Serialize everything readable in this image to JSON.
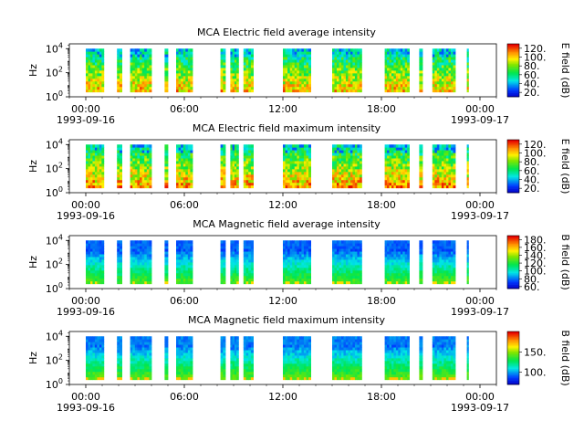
{
  "chart_data": [
    {
      "type": "heatmap",
      "title": "MCA  Electric field average intensity",
      "ylabel": "Hz",
      "ylim_log10": [
        0,
        4.4
      ],
      "y_ticks": [
        {
          "base": "10",
          "exp": "0"
        },
        {
          "base": "10",
          "exp": "2"
        },
        {
          "base": "10",
          "exp": "4"
        }
      ],
      "x_ticks": [
        {
          "time": "00:00",
          "date": "1993-09-16"
        },
        {
          "time": "06:00",
          "date": ""
        },
        {
          "time": "12:00",
          "date": ""
        },
        {
          "time": "18:00",
          "date": ""
        },
        {
          "time": "00:00",
          "date": "1993-09-17"
        }
      ],
      "x_range_hours": [
        -1,
        25
      ],
      "colorbar": {
        "label": "E field (dB)",
        "range": [
          10,
          130
        ],
        "ticks": [
          "20.",
          "40.",
          "60.",
          "80.",
          "100.",
          "120."
        ],
        "tick_values": [
          20,
          40,
          60,
          80,
          100,
          120
        ]
      },
      "kind": "electric-avg"
    },
    {
      "type": "heatmap",
      "title": "MCA  Electric field maximum intensity",
      "ylabel": "Hz",
      "ylim_log10": [
        0,
        4.4
      ],
      "y_ticks": [
        {
          "base": "10",
          "exp": "0"
        },
        {
          "base": "10",
          "exp": "2"
        },
        {
          "base": "10",
          "exp": "4"
        }
      ],
      "x_ticks": [
        {
          "time": "00:00",
          "date": "1993-09-16"
        },
        {
          "time": "06:00",
          "date": ""
        },
        {
          "time": "12:00",
          "date": ""
        },
        {
          "time": "18:00",
          "date": ""
        },
        {
          "time": "00:00",
          "date": "1993-09-17"
        }
      ],
      "x_range_hours": [
        -1,
        25
      ],
      "colorbar": {
        "label": "E field (dB)",
        "range": [
          10,
          130
        ],
        "ticks": [
          "20.",
          "40.",
          "60.",
          "80.",
          "100.",
          "120."
        ],
        "tick_values": [
          20,
          40,
          60,
          80,
          100,
          120
        ]
      },
      "kind": "electric-max"
    },
    {
      "type": "heatmap",
      "title": "MCA  Magnetic field average intensity",
      "ylabel": "Hz",
      "ylim_log10": [
        0,
        4.4
      ],
      "y_ticks": [
        {
          "base": "10",
          "exp": "0"
        },
        {
          "base": "10",
          "exp": "2"
        },
        {
          "base": "10",
          "exp": "4"
        }
      ],
      "x_ticks": [
        {
          "time": "00:00",
          "date": "1993-09-16"
        },
        {
          "time": "06:00",
          "date": ""
        },
        {
          "time": "12:00",
          "date": ""
        },
        {
          "time": "18:00",
          "date": ""
        },
        {
          "time": "00:00",
          "date": "1993-09-17"
        }
      ],
      "x_range_hours": [
        -1,
        25
      ],
      "colorbar": {
        "label": "B field (dB)",
        "range": [
          55,
          190
        ],
        "ticks": [
          "60.",
          "80.",
          "100.",
          "120.",
          "140.",
          "160.",
          "180."
        ],
        "tick_values": [
          60,
          80,
          100,
          120,
          140,
          160,
          180
        ]
      },
      "kind": "magnetic-avg"
    },
    {
      "type": "heatmap",
      "title": "MCA  Magnetic field maximum intensity",
      "ylabel": "Hz",
      "ylim_log10": [
        0,
        4.4
      ],
      "y_ticks": [
        {
          "base": "10",
          "exp": "0"
        },
        {
          "base": "10",
          "exp": "2"
        },
        {
          "base": "10",
          "exp": "4"
        }
      ],
      "x_ticks": [
        {
          "time": "00:00",
          "date": "1993-09-16"
        },
        {
          "time": "06:00",
          "date": ""
        },
        {
          "time": "12:00",
          "date": ""
        },
        {
          "time": "18:00",
          "date": ""
        },
        {
          "time": "00:00",
          "date": "1993-09-17"
        }
      ],
      "x_range_hours": [
        -1,
        25
      ],
      "colorbar": {
        "label": "B field (dB)",
        "range": [
          70,
          200
        ],
        "ticks": [
          "100.",
          "150."
        ],
        "tick_values": [
          100,
          150
        ]
      },
      "kind": "magnetic-max"
    }
  ],
  "data_segments_hours": [
    [
      0.0,
      1.1
    ],
    [
      1.9,
      2.2
    ],
    [
      2.7,
      4.0
    ],
    [
      4.8,
      5.0
    ],
    [
      5.5,
      6.5
    ],
    [
      8.2,
      8.5
    ],
    [
      8.8,
      9.3
    ],
    [
      9.6,
      10.2
    ],
    [
      12.0,
      13.7
    ],
    [
      15.0,
      16.8
    ],
    [
      18.2,
      19.7
    ],
    [
      20.3,
      20.5
    ],
    [
      21.1,
      22.5
    ],
    [
      23.2,
      23.3
    ]
  ],
  "data_freq_range_log10": [
    0.4,
    4.0
  ]
}
